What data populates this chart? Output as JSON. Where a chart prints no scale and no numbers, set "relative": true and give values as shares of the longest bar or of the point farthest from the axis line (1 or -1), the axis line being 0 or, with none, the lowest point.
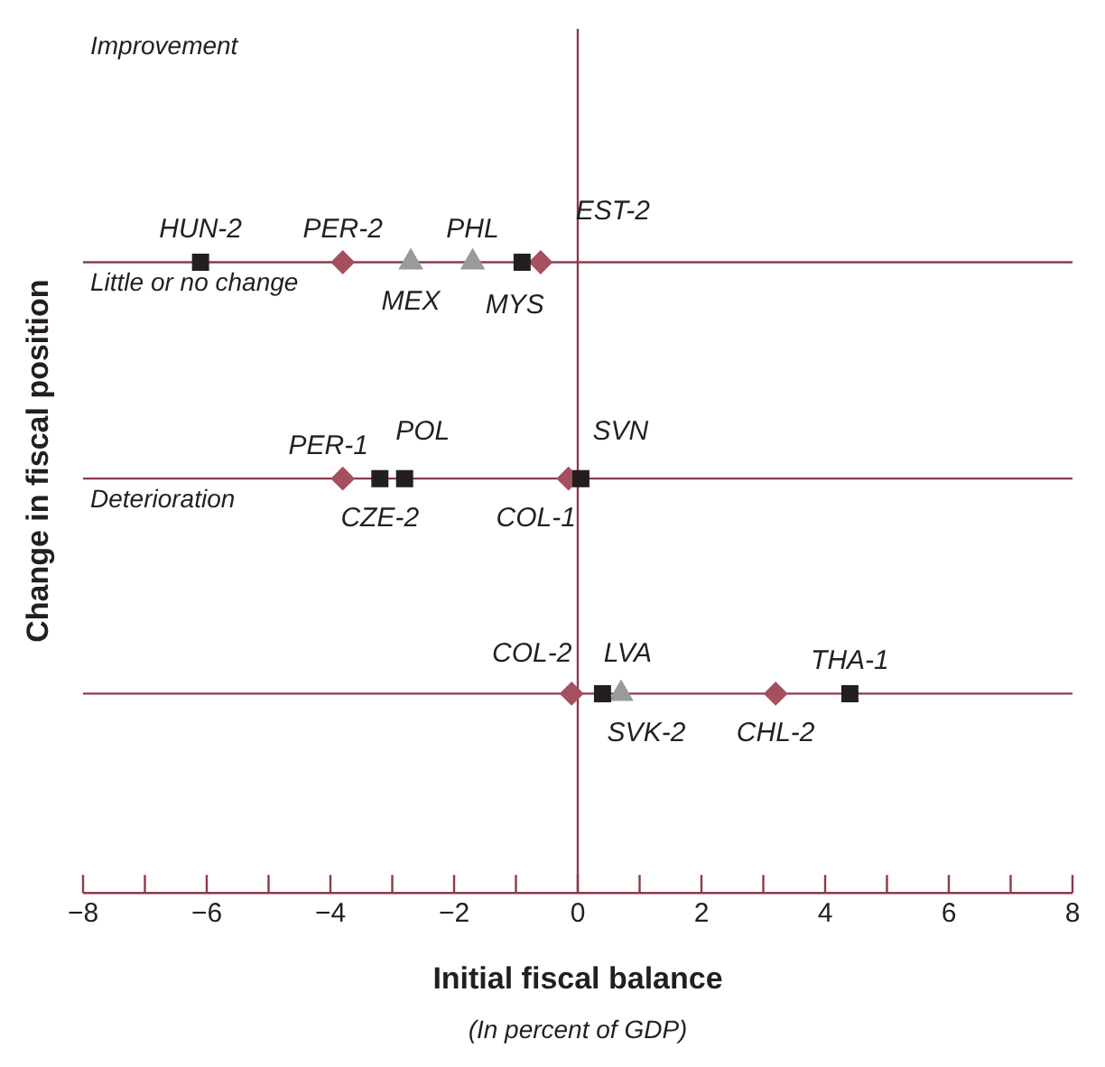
{
  "chart_data": {
    "type": "scatter",
    "relative": true,
    "ylabel": "Change in fiscal position",
    "xlabel": "Initial fiscal balance",
    "xlim": [
      -8,
      8
    ],
    "xticks": [
      -8,
      {
        "value": -7,
        "label": null
      },
      -6,
      {
        "value": -5,
        "label": null
      },
      -4,
      {
        "value": -3,
        "label": null
      },
      -2,
      {
        "value": -1,
        "label": null
      },
      0,
      {
        "value": 1,
        "label": null
      },
      2,
      {
        "value": 3,
        "label": null
      },
      4,
      {
        "value": 5,
        "label": null
      },
      6,
      {
        "value": 7,
        "label": null
      },
      8
    ],
    "grid": false,
    "legend": false,
    "series": [
      {
        "marker": "square",
        "color": "#231f20",
        "x": [
          -6.1,
          -0.9,
          -3.2,
          -2.8,
          0.05,
          0.4,
          4.4
        ],
        "values": [
          1,
          1,
          0.657,
          0.657,
          0.657,
          0.316,
          0.316
        ]
      },
      {
        "marker": "diamond",
        "color": "#a5505f",
        "x": [
          -3.8,
          -0.6,
          -3.8,
          -0.15,
          -0.1,
          3.2
        ],
        "values": [
          1,
          1,
          0.657,
          0.657,
          0.316,
          0.316
        ]
      },
      {
        "marker": "triangle",
        "color": "#9a9a9a",
        "x": [
          -2.7,
          -1.7,
          0.7
        ],
        "values": [
          1,
          1,
          0.316
        ]
      }
    ],
    "ref_lines": [
      {
        "axis": "x",
        "value": 0,
        "color": "#8c3b4b"
      },
      {
        "axis": "y",
        "value": 1,
        "label": "Little or no change",
        "color": "#8c3b4b"
      },
      {
        "axis": "y",
        "value": 0.657,
        "label": "Deterioration",
        "color": "#8c3b4b"
      },
      {
        "axis": "y",
        "value": 0.316,
        "color": "#8c3b4b"
      }
    ],
    "annotations": [
      "Improvement",
      "(In percent of GDP)",
      {
        "text": "HUN-2",
        "x": -6.1,
        "y": 1
      },
      {
        "text": "PER-2",
        "x": -3.8,
        "y": 1
      },
      {
        "text": "MEX",
        "x": -2.7,
        "y": 1
      },
      {
        "text": "PHL",
        "x": -1.7,
        "y": 1
      },
      {
        "text": "MYS",
        "x": -0.9,
        "y": 1
      },
      {
        "text": "EST-2",
        "x": -0.6,
        "y": 1
      },
      {
        "text": "PER-1",
        "x": -3.8,
        "y": 0.657
      },
      {
        "text": "CZE-2",
        "x": -3.2,
        "y": 0.657
      },
      {
        "text": "POL",
        "x": -2.8,
        "y": 0.657
      },
      {
        "text": "COL-1",
        "x": -0.15,
        "y": 0.657
      },
      {
        "text": "SVN",
        "x": 0.05,
        "y": 0.657
      },
      {
        "text": "COL-2",
        "x": -0.1,
        "y": 0.316
      },
      {
        "text": "LVA",
        "x": 0.4,
        "y": 0.316
      },
      {
        "text": "SVK-2",
        "x": 0.7,
        "y": 0.316
      },
      {
        "text": "CHL-2",
        "x": 3.2,
        "y": 0.316
      },
      {
        "text": "THA-1",
        "x": 4.4,
        "y": 0.316
      }
    ]
  }
}
